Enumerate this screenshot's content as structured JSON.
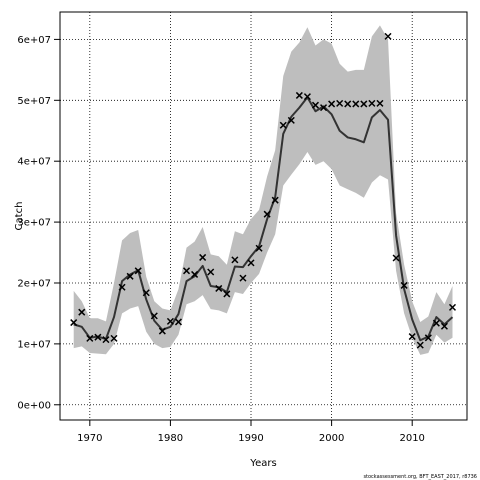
{
  "chart_data": {
    "type": "line",
    "xlabel": "Years",
    "ylabel": "Catch",
    "xlim": [
      1966.3,
      2016.8
    ],
    "ylim": [
      -2500000,
      64500000
    ],
    "x_ticks": [
      1970,
      1980,
      1990,
      2000,
      2010
    ],
    "x_tick_labels": [
      "1970",
      "1980",
      "1990",
      "2000",
      "2010"
    ],
    "y_ticks": [
      0,
      10000000,
      20000000,
      30000000,
      40000000,
      50000000,
      60000000
    ],
    "y_tick_labels": [
      "0e+00",
      "1e+07",
      "2e+07",
      "3e+07",
      "4e+07",
      "5e+07",
      "6e+07"
    ],
    "grid": true,
    "footnote": "stockassessment.org, BFT_EAST_2017, r8736",
    "colors": {
      "band": "#bebebe",
      "line": "#333333",
      "points": "#000000",
      "grid": "#000000"
    },
    "x": [
      1968,
      1969,
      1970,
      1971,
      1972,
      1973,
      1974,
      1975,
      1976,
      1977,
      1978,
      1979,
      1980,
      1981,
      1982,
      1983,
      1984,
      1985,
      1986,
      1987,
      1988,
      1989,
      1990,
      1991,
      1992,
      1993,
      1994,
      1995,
      1996,
      1997,
      1998,
      1999,
      2000,
      2001,
      2002,
      2003,
      2004,
      2005,
      2006,
      2007,
      2008,
      2009,
      2010,
      2011,
      2012,
      2013,
      2014,
      2015
    ],
    "series": [
      {
        "type": "band",
        "lower": [
          9300000,
          9600000,
          8500000,
          8400000,
          8300000,
          10000000,
          15000000,
          15800000,
          16200000,
          12000000,
          10000000,
          9300000,
          9500000,
          11500000,
          16500000,
          17000000,
          18000000,
          15700000,
          15500000,
          15000000,
          18500000,
          18200000,
          20000000,
          21500000,
          25000000,
          28000000,
          36000000,
          37800000,
          39500000,
          41500000,
          39400000,
          40000000,
          38700000,
          36000000,
          35400000,
          34800000,
          34000000,
          36500000,
          37700000,
          37000000,
          22000000,
          15000000,
          11000000,
          8200000,
          8500000,
          11500000,
          10200000,
          11000000
        ],
        "upper": [
          18700000,
          17000000,
          14200000,
          14200000,
          13700000,
          20000000,
          27000000,
          28200000,
          28700000,
          21000000,
          17000000,
          15800000,
          15500000,
          19000000,
          25800000,
          26800000,
          29200000,
          24700000,
          24400000,
          23000000,
          28500000,
          28000000,
          30500000,
          32000000,
          37500000,
          41800000,
          54000000,
          58000000,
          59500000,
          62000000,
          59000000,
          60000000,
          59300000,
          56000000,
          54700000,
          55000000,
          55000000,
          60500000,
          62300000,
          60000000,
          31500000,
          23000000,
          17000000,
          13600000,
          14500000,
          18500000,
          16500000,
          19500000
        ]
      },
      {
        "type": "line",
        "values": [
          13200000,
          12800000,
          11000000,
          11200000,
          10800000,
          14400000,
          20300000,
          21400000,
          22100000,
          17300000,
          13800000,
          12300000,
          12800000,
          14900000,
          20300000,
          21100000,
          22800000,
          19500000,
          19300000,
          18500000,
          22700000,
          22600000,
          24400000,
          26000000,
          30500000,
          34100000,
          44500000,
          47300000,
          48800000,
          50500000,
          48200000,
          49000000,
          47700000,
          45000000,
          43900000,
          43600000,
          43100000,
          47200000,
          48400000,
          46800000,
          27800000,
          19000000,
          14000000,
          10600000,
          11200000,
          14400000,
          13200000,
          14400000
        ]
      },
      {
        "type": "scatter",
        "values": [
          13500000,
          15200000,
          10900000,
          11100000,
          10700000,
          10900000,
          19300000,
          21100000,
          22000000,
          18400000,
          14600000,
          12100000,
          13700000,
          13600000,
          22000000,
          21400000,
          24200000,
          21800000,
          19100000,
          18200000,
          23800000,
          20800000,
          23300000,
          25700000,
          31300000,
          33600000,
          45900000,
          46700000,
          50800000,
          50600000,
          49200000,
          48800000,
          49400000,
          49500000,
          49400000,
          49400000,
          49400000,
          49500000,
          49500000,
          60500000,
          24100000,
          19600000,
          11200000,
          9800000,
          11000000,
          13400000,
          12900000,
          16000000
        ]
      }
    ]
  }
}
